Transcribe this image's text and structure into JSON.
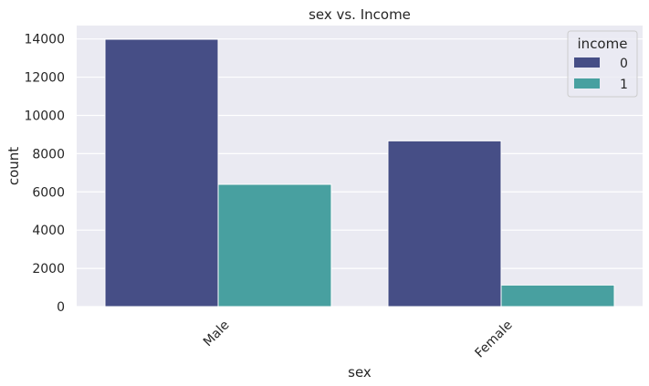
{
  "chart_data": {
    "type": "bar",
    "title": "sex vs. Income",
    "xlabel": "sex",
    "ylabel": "count",
    "categories": [
      "Male",
      "Female"
    ],
    "series": [
      {
        "name": "0",
        "values": [
          13984,
          8670
        ]
      },
      {
        "name": "1",
        "values": [
          6396,
          1128
        ]
      }
    ],
    "ylim": [
      0,
      14700
    ],
    "yticks": [
      0,
      2000,
      4000,
      6000,
      8000,
      10000,
      12000,
      14000
    ],
    "legend": {
      "title": "income",
      "position": "top-right"
    },
    "grid": true,
    "colors": {
      "series_0": "#464e86",
      "series_1": "#48a0a0",
      "background": "#eaeaf2",
      "grid": "#ffffff"
    }
  }
}
